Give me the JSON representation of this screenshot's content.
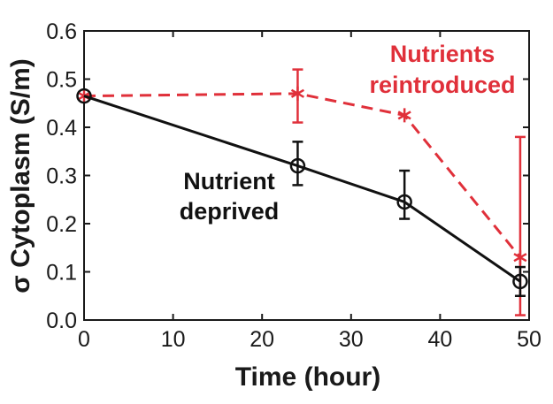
{
  "chart_data": {
    "type": "line",
    "title": "",
    "xlabel": "Time (hour)",
    "ylabel": "σ Cytoplasm (S/m)",
    "xlim": [
      0,
      50
    ],
    "ylim": [
      0.0,
      0.6
    ],
    "x_ticks": [
      0,
      10,
      20,
      30,
      40,
      50
    ],
    "x_tick_labels": [
      "0",
      "10",
      "20",
      "30",
      "40",
      "50"
    ],
    "y_ticks": [
      0.0,
      0.1,
      0.2,
      0.3,
      0.4,
      0.5,
      0.6
    ],
    "y_tick_labels": [
      "0.0",
      "0.1",
      "0.2",
      "0.3",
      "0.4",
      "0.5",
      "0.6"
    ],
    "grid": false,
    "series": [
      {
        "name": "Nutrient deprived",
        "annotation_lines": [
          "Nutrient",
          "deprived"
        ],
        "color": "#111111",
        "line_style": "solid",
        "marker": "circle",
        "x": [
          0,
          24,
          36,
          49
        ],
        "y": [
          0.465,
          0.32,
          0.245,
          0.08
        ],
        "err_low": [
          0.465,
          0.28,
          0.21,
          0.05
        ],
        "err_high": [
          0.465,
          0.37,
          0.31,
          0.11
        ]
      },
      {
        "name": "Nutrients reintroduced",
        "annotation_lines": [
          "Nutrients",
          "reintroduced"
        ],
        "color": "#e0303a",
        "line_style": "dashed",
        "marker": "asterisk",
        "x": [
          0,
          24,
          36,
          49
        ],
        "y": [
          0.465,
          0.47,
          0.425,
          0.13
        ],
        "err_low": [
          0.465,
          0.41,
          0.425,
          0.01
        ],
        "err_high": [
          0.465,
          0.52,
          0.425,
          0.38
        ]
      }
    ]
  }
}
